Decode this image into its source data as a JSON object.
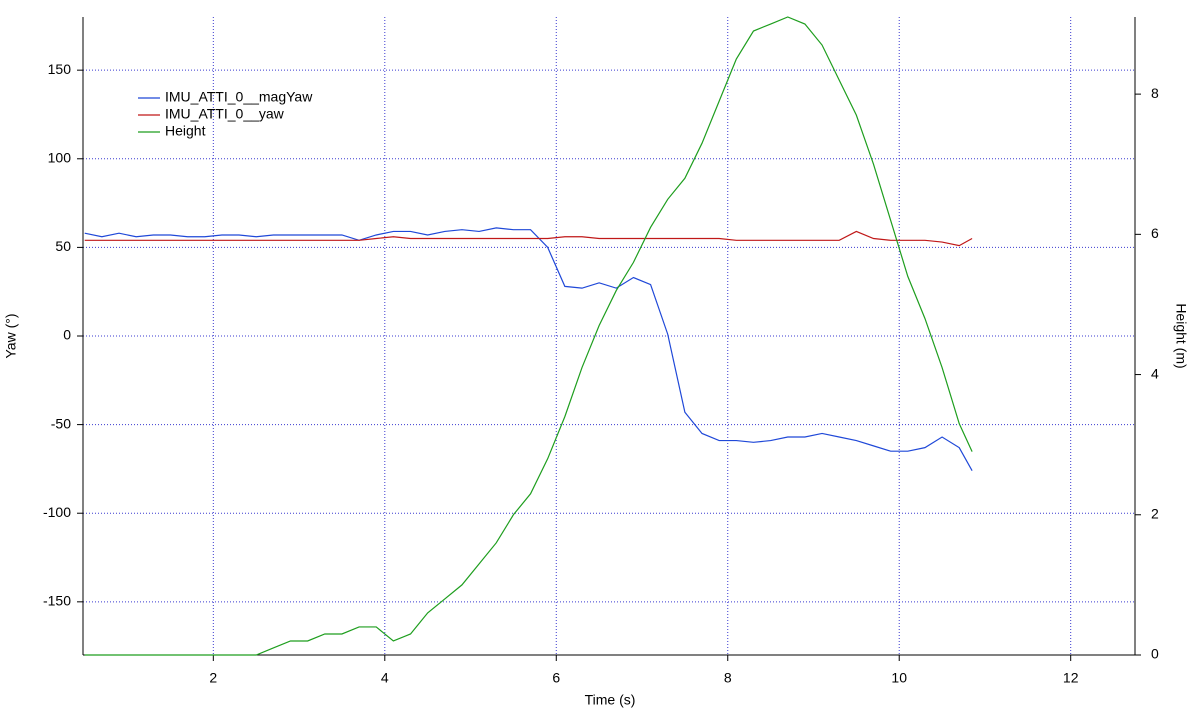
{
  "chart_data": {
    "type": "line",
    "x_label": "Time (s)",
    "y_label": "Yaw (°)",
    "y2_label": "Height (m)",
    "x": [
      0.5,
      0.7,
      0.9,
      1.1,
      1.3,
      1.5,
      1.7,
      1.9,
      2.1,
      2.3,
      2.5,
      2.7,
      2.9,
      3.1,
      3.3,
      3.5,
      3.7,
      3.9,
      4.1,
      4.3,
      4.5,
      4.7,
      4.9,
      5.1,
      5.3,
      5.5,
      5.7,
      5.9,
      6.1,
      6.3,
      6.5,
      6.7,
      6.9,
      7.1,
      7.3,
      7.5,
      7.7,
      7.9,
      8.1,
      8.3,
      8.5,
      8.7,
      8.9,
      9.1,
      9.3,
      9.5,
      9.7,
      9.9,
      10.1,
      10.3,
      10.5,
      10.7,
      10.85
    ],
    "series": [
      {
        "name": "IMU_ATTI_0__magYaw",
        "color": "#1f48d8",
        "values": [
          58,
          56,
          58,
          56,
          57,
          57,
          56,
          56,
          57,
          57,
          56,
          57,
          57,
          57,
          57,
          57,
          54,
          57,
          59,
          59,
          57,
          59,
          60,
          59,
          61,
          60,
          60,
          50,
          28,
          27,
          30,
          27,
          33,
          29,
          1,
          -43,
          -55,
          -59,
          -59,
          -60,
          -59,
          -57,
          -57,
          -55,
          -57,
          -59,
          -62,
          -65,
          -65,
          -63,
          -57,
          -63,
          -76
        ]
      },
      {
        "name": "IMU_ATTI_0__yaw",
        "color": "#c01818",
        "values": [
          54,
          54,
          54,
          54,
          54,
          54,
          54,
          54,
          54,
          54,
          54,
          54,
          54,
          54,
          54,
          54,
          54,
          55,
          56,
          55,
          55,
          55,
          55,
          55,
          55,
          55,
          55,
          55,
          56,
          56,
          55,
          55,
          55,
          55,
          55,
          55,
          55,
          55,
          54,
          54,
          54,
          54,
          54,
          54,
          54,
          59,
          55,
          54,
          54,
          54,
          53,
          51,
          55
        ]
      },
      {
        "name": "Height",
        "color": "#1e9e1e",
        "axis": "y2",
        "values": [
          0,
          0,
          0,
          0,
          0,
          0,
          0,
          0,
          0,
          0,
          0,
          0.1,
          0.2,
          0.2,
          0.3,
          0.3,
          0.4,
          0.4,
          0.2,
          0.3,
          0.6,
          0.8,
          1.0,
          1.3,
          1.6,
          2.0,
          2.3,
          2.8,
          3.4,
          4.1,
          4.7,
          5.2,
          5.6,
          6.1,
          6.5,
          6.8,
          7.3,
          7.9,
          8.5,
          8.9,
          9.0,
          9.1,
          9.0,
          8.7,
          8.2,
          7.7,
          7.0,
          6.2,
          5.4,
          4.8,
          4.1,
          3.3,
          2.9
        ]
      }
    ],
    "xlim": [
      0.48,
      12.75
    ],
    "xticks": [
      2,
      4,
      6,
      8,
      10,
      12
    ],
    "ylim": [
      -180,
      180
    ],
    "yticks": [
      -150,
      -100,
      -50,
      0,
      50,
      100,
      150
    ],
    "y2lim": [
      0,
      9.1
    ],
    "y2ticks": [
      0,
      2,
      4,
      6,
      8
    ],
    "grid": true,
    "grid_color": "#3a3ad0",
    "legend": "upper-left"
  }
}
